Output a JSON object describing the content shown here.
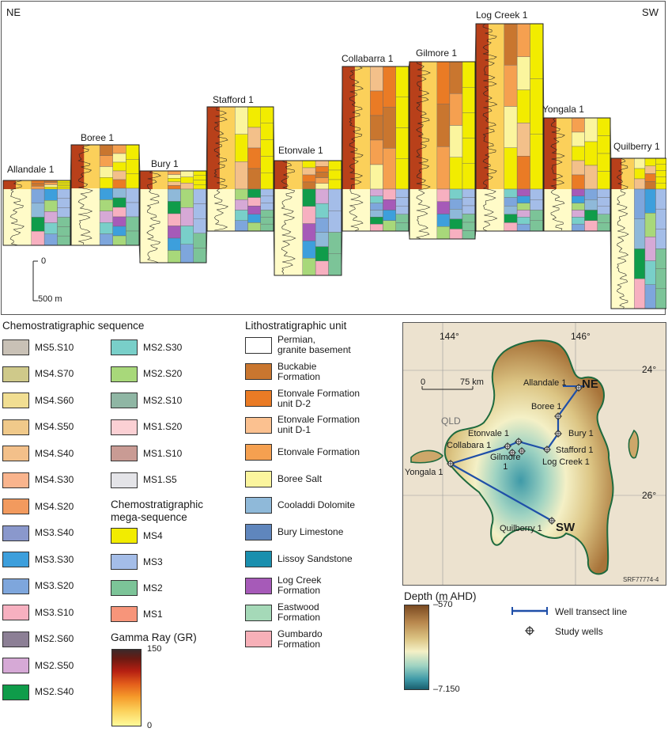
{
  "cross_section": {
    "direction_left": "NE",
    "direction_right": "SW",
    "scale_top": "0",
    "scale_bottom": "500 m",
    "wells": [
      "Allandale 1",
      "Boree 1",
      "Bury 1",
      "Stafford 1",
      "Etonvale 1",
      "Collabarra 1",
      "Gilmore 1",
      "Log Creek 1",
      "Yongala 1",
      "Quilberry 1"
    ]
  },
  "legend_chemo": {
    "title": "Chemostratigraphic sequence",
    "col1": [
      {
        "label": "MS5.S10",
        "color": "#c9c1b6"
      },
      {
        "label": "MS4.S70",
        "color": "#cfc98a"
      },
      {
        "label": "MS4.S60",
        "color": "#f1de92"
      },
      {
        "label": "MS4.S50",
        "color": "#f0c98a"
      },
      {
        "label": "MS4.S40",
        "color": "#f3c08a"
      },
      {
        "label": "MS4.S30",
        "color": "#f9b48d"
      },
      {
        "label": "MS4.S20",
        "color": "#f29a5e"
      },
      {
        "label": "MS3.S40",
        "color": "#8a98cc"
      },
      {
        "label": "MS3.S30",
        "color": "#3d9fdc"
      },
      {
        "label": "MS3.S20",
        "color": "#7ea6dc"
      },
      {
        "label": "MS3.S10",
        "color": "#f7b0c0"
      },
      {
        "label": "MS2.S60",
        "color": "#8c7f95"
      },
      {
        "label": "MS2.S50",
        "color": "#d6a9d6"
      },
      {
        "label": "MS2.S40",
        "color": "#0f9c4a"
      }
    ],
    "col2": [
      {
        "label": "MS2.S30",
        "color": "#79cfc9"
      },
      {
        "label": "MS2.S20",
        "color": "#a8d87a"
      },
      {
        "label": "MS2.S10",
        "color": "#8fb6a4"
      },
      {
        "label": "MS1.S20",
        "color": "#fbd0d4"
      },
      {
        "label": "MS1.S10",
        "color": "#c99b94"
      },
      {
        "label": "MS1.S5",
        "color": "#e4e4e8"
      }
    ]
  },
  "legend_mega": {
    "title": "Chemostratigraphic\nmega-sequence",
    "items": [
      {
        "label": "MS4",
        "color": "#f2ec00"
      },
      {
        "label": "MS3",
        "color": "#a4bde8"
      },
      {
        "label": "MS2",
        "color": "#7cc498"
      },
      {
        "label": "MS1",
        "color": "#f7957a"
      }
    ]
  },
  "legend_gr": {
    "title": "Gamma Ray (GR)",
    "max": "150",
    "min": "0"
  },
  "legend_litho": {
    "title": "Lithostratigraphic unit",
    "items": [
      {
        "label": "Permian,\ngranite basement",
        "color": "#ffffff"
      },
      {
        "label": "Buckabie\nFormation",
        "color": "#c9762f"
      },
      {
        "label": "Etonvale Formation\nunit D-2",
        "color": "#ea7b25"
      },
      {
        "label": "Etonvale Formation\nunit D-1",
        "color": "#fbc190"
      },
      {
        "label": "Etonvale Formation",
        "color": "#f5a050"
      },
      {
        "label": "Boree Salt",
        "color": "#fbf59e"
      },
      {
        "label": "Cooladdi Dolomite",
        "color": "#8fb9d9"
      },
      {
        "label": "Bury Limestone",
        "color": "#5f86bd"
      },
      {
        "label": "Lissoy Sandstone",
        "color": "#1a8fae"
      },
      {
        "label": "Log Creek\nFormation",
        "color": "#a65ab8"
      },
      {
        "label": "Eastwood\nFormation",
        "color": "#a5d9b8"
      },
      {
        "label": "Gumbardo\nFormation",
        "color": "#f7b0b8"
      }
    ]
  },
  "map": {
    "lon_144": "144°",
    "lon_146": "146°",
    "lat_24": "24°",
    "lat_26": "26°",
    "scale_0": "0",
    "scale_75": "75 km",
    "state": "QLD",
    "ne": "NE",
    "sw": "SW",
    "wells": [
      "Allandale 1",
      "Boree 1",
      "Bury 1",
      "Stafford 1",
      "Etonvale 1",
      "Collabara 1",
      "Gilmore\n1",
      "Log Creek 1",
      "Yongala 1",
      "Quilberry 1"
    ],
    "ref": "SRF77774-4"
  },
  "depth_legend": {
    "title": "Depth (m AHD)",
    "max": "–570",
    "min": "–7.150"
  },
  "map_legend": {
    "transect": "Well transect line",
    "wells": "Study wells"
  },
  "colors": {
    "transect": "#1f4fa8",
    "ms4": "#f2ec00",
    "ms3": "#a4bde8",
    "ms2": "#7cc498",
    "ms1": "#f7957a"
  }
}
